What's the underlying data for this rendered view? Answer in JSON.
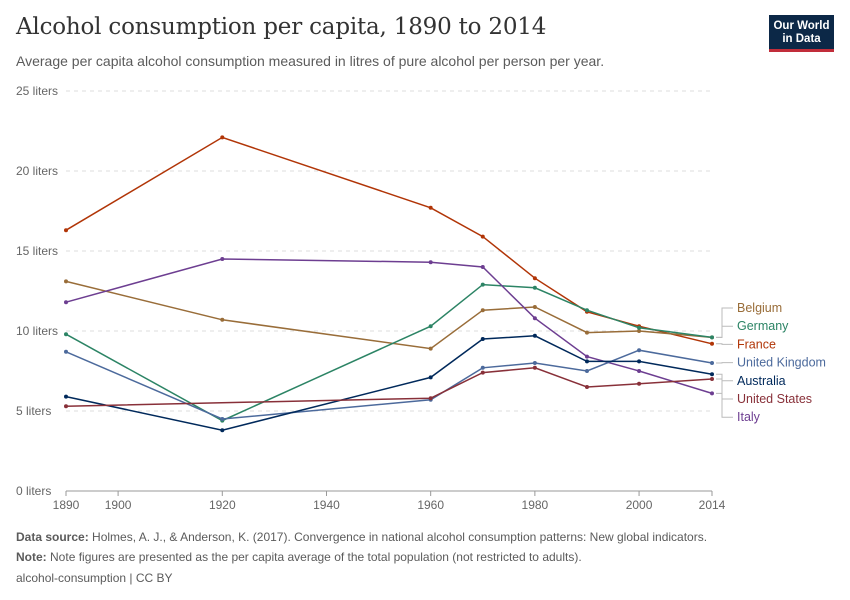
{
  "header": {
    "title": "Alcohol consumption per capita, 1890 to 2014",
    "subtitle": "Average per capita alcohol consumption measured in litres of pure alcohol per person per year."
  },
  "logo": {
    "line1": "Our World",
    "line2": "in Data",
    "bg_color": "#0c2847",
    "accent_color": "#c12d3a"
  },
  "footer": {
    "source_label": "Data source:",
    "source_text": "Holmes, A. J., & Anderson, K. (2017). Convergence in national alcohol consumption patterns: New global indicators.",
    "note_label": "Note:",
    "note_text": "Note figures are presented as the per capita average of the total population (not restricted to adults).",
    "slug": "alcohol-consumption | CC BY"
  },
  "chart_data": {
    "type": "line",
    "title": "Alcohol consumption per capita, 1890 to 2014",
    "subtitle": "Average per capita alcohol consumption measured in litres of pure alcohol per person per year.",
    "xlabel": "",
    "ylabel": "",
    "xlim": [
      1890,
      2014
    ],
    "ylim": [
      0,
      25
    ],
    "x_ticks": [
      "1890",
      "1900",
      "1920",
      "1940",
      "1960",
      "1980",
      "2000",
      "2014"
    ],
    "y_ticks": [
      {
        "value": 0,
        "label": "0 liters"
      },
      {
        "value": 5,
        "label": "5 liters"
      },
      {
        "value": 10,
        "label": "10 liters"
      },
      {
        "value": 15,
        "label": "15 liters"
      },
      {
        "value": 20,
        "label": "20 liters"
      },
      {
        "value": 25,
        "label": "25 liters"
      }
    ],
    "grid": true,
    "legend": "right, end-of-line labels",
    "x": [
      1890,
      1920,
      1960,
      1970,
      1980,
      1990,
      2000,
      2014
    ],
    "series": [
      {
        "name": "France",
        "color": "#b13507",
        "values": [
          16.3,
          22.1,
          17.7,
          15.9,
          13.3,
          11.2,
          10.3,
          9.2
        ]
      },
      {
        "name": "Belgium",
        "color": "#996d39",
        "values": [
          13.1,
          10.7,
          8.9,
          11.3,
          11.5,
          9.9,
          10.0,
          9.6
        ]
      },
      {
        "name": "Germany",
        "color": "#2c8465",
        "values": [
          9.8,
          4.4,
          10.3,
          12.9,
          12.7,
          11.3,
          10.2,
          9.6
        ]
      },
      {
        "name": "Italy",
        "color": "#6d3e91",
        "values": [
          11.8,
          14.5,
          14.3,
          14.0,
          10.8,
          8.4,
          7.5,
          6.1
        ]
      },
      {
        "name": "United Kingdom",
        "color": "#4c6a9c",
        "values": [
          8.7,
          4.5,
          5.7,
          7.7,
          8.0,
          7.5,
          8.8,
          8.0
        ]
      },
      {
        "name": "Australia",
        "color": "#00295b",
        "values": [
          5.9,
          3.8,
          7.1,
          9.5,
          9.7,
          8.1,
          8.1,
          7.3
        ]
      },
      {
        "name": "United States",
        "color": "#883039",
        "values": [
          5.3,
          null,
          5.8,
          7.4,
          7.7,
          6.5,
          6.7,
          7.0
        ]
      }
    ],
    "label_order": [
      "Belgium",
      "Germany",
      "France",
      "United Kingdom",
      "Australia",
      "United States",
      "Italy"
    ]
  }
}
